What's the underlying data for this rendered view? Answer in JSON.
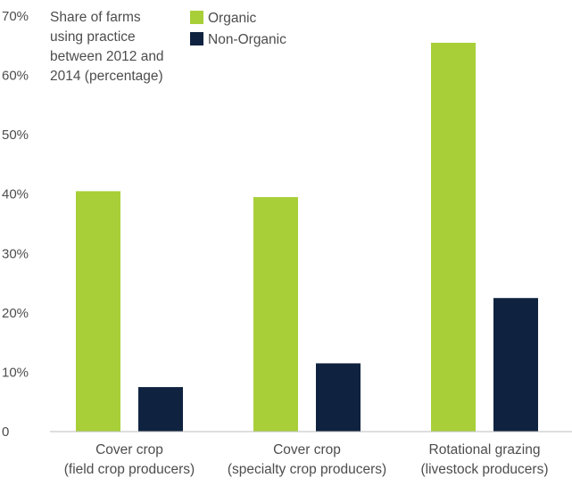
{
  "chart_data": {
    "type": "bar",
    "title_lines": [
      "Share of farms",
      "using practice",
      "between 2012 and",
      "2014 (percentage)"
    ],
    "categories": [
      [
        "Cover crop",
        "(field crop producers)"
      ],
      [
        "Cover crop",
        "(specialty crop producers)"
      ],
      [
        "Rotational grazing",
        "(livestock producers)"
      ]
    ],
    "series": [
      {
        "name": "Organic",
        "color": "#a8cf38",
        "values": [
          40.5,
          39.5,
          65.5
        ]
      },
      {
        "name": "Non-Organic",
        "color": "#0f2340",
        "values": [
          7.5,
          11.5,
          22.5
        ]
      }
    ],
    "ylim": [
      0,
      70
    ],
    "y_ticks": [
      {
        "value": 0,
        "label": "0"
      },
      {
        "value": 10,
        "label": "10%"
      },
      {
        "value": 20,
        "label": "20%"
      },
      {
        "value": 30,
        "label": "30%"
      },
      {
        "value": 40,
        "label": "40%"
      },
      {
        "value": 50,
        "label": "50%"
      },
      {
        "value": 60,
        "label": "60%"
      },
      {
        "value": 70,
        "label": "70%"
      }
    ],
    "grid": false,
    "legend_position": "top"
  }
}
